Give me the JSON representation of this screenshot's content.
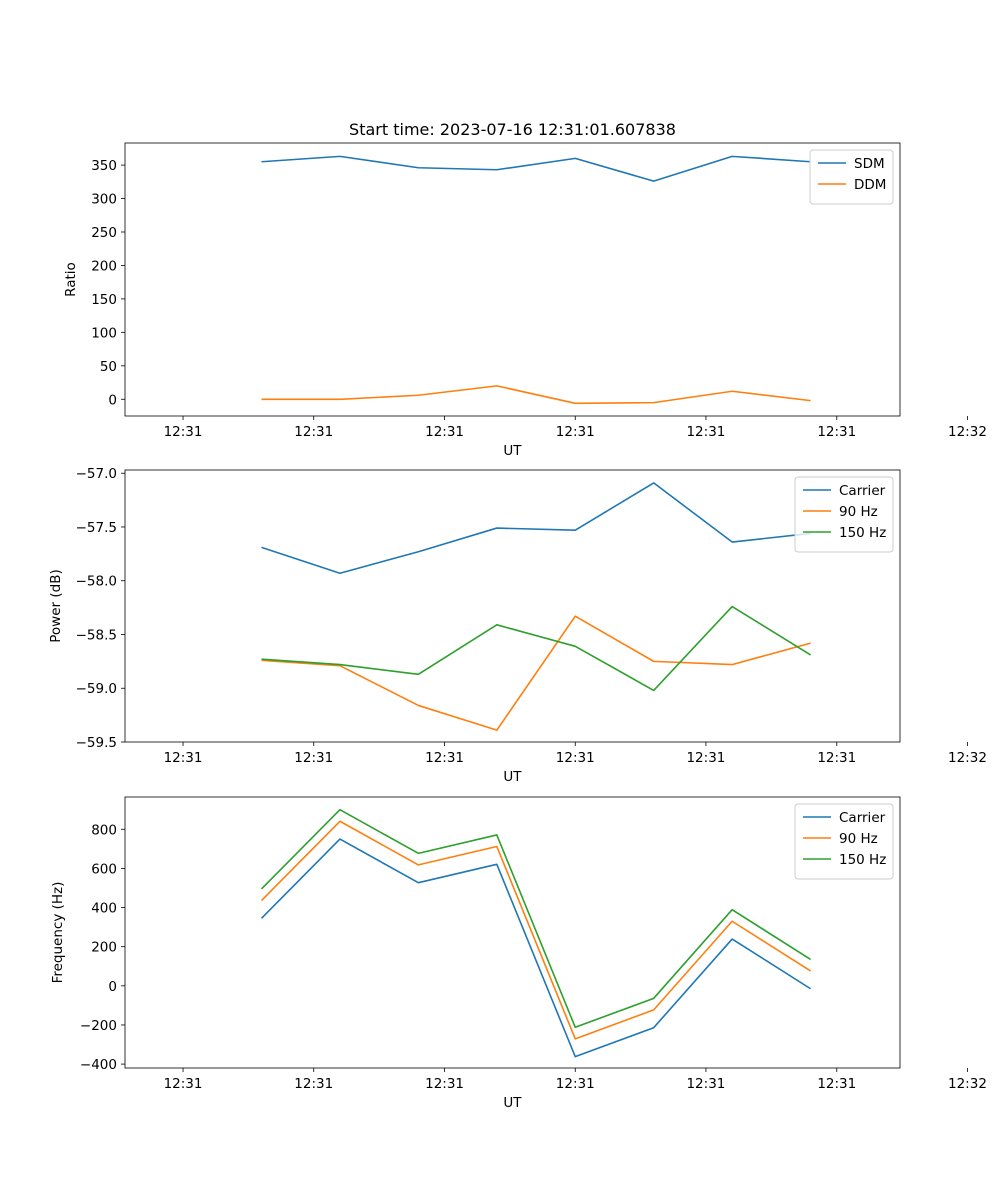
{
  "figure_title": "Start time: 2023-07-16 12:31:01.607838",
  "colors": {
    "series1": "#1f77b4",
    "series2": "#ff7f0e",
    "series3": "#2ca02c"
  },
  "chart_data": [
    {
      "type": "line",
      "title": "Start time: 2023-07-16 12:31:01.607838",
      "xlabel": "UT",
      "ylabel": "Ratio",
      "x": [
        0.5,
        1.0,
        1.5,
        2.0,
        2.5,
        3.0,
        3.5,
        4.0
      ],
      "xlim": [
        -0.37,
        4.57
      ],
      "xticks": [
        0,
        0.833,
        1.667,
        2.5,
        3.333,
        4.167,
        5.0
      ],
      "xtick_labels": [
        "12:31",
        "12:31",
        "12:31",
        "12:31",
        "12:31",
        "12:31",
        "12:32"
      ],
      "ylim": [
        -25,
        383
      ],
      "yticks": [
        0,
        50,
        100,
        150,
        200,
        250,
        300,
        350
      ],
      "ytick_labels": [
        "0",
        "50",
        "100",
        "150",
        "200",
        "250",
        "300",
        "350"
      ],
      "legend_position": "top-right",
      "series": [
        {
          "name": "SDM",
          "color": "#1f77b4",
          "values": [
            355,
            363,
            346,
            343,
            360,
            326,
            363,
            355
          ]
        },
        {
          "name": "DDM",
          "color": "#ff7f0e",
          "values": [
            0,
            0,
            6,
            20,
            -6,
            -5,
            12,
            -2
          ]
        }
      ]
    },
    {
      "type": "line",
      "title": "",
      "xlabel": "UT",
      "ylabel": "Power (dB)",
      "x": [
        0.5,
        1.0,
        1.5,
        2.0,
        2.5,
        3.0,
        3.5,
        4.0
      ],
      "xlim": [
        -0.37,
        4.57
      ],
      "xticks": [
        0,
        0.833,
        1.667,
        2.5,
        3.333,
        4.167,
        5.0
      ],
      "xtick_labels": [
        "12:31",
        "12:31",
        "12:31",
        "12:31",
        "12:31",
        "12:31",
        "12:32"
      ],
      "ylim": [
        -59.5,
        -56.97
      ],
      "yticks": [
        -59.5,
        -59.0,
        -58.5,
        -58.0,
        -57.5,
        -57.0
      ],
      "ytick_labels": [
        "−59.5",
        "−59.0",
        "−58.5",
        "−58.0",
        "−57.5",
        "−57.0"
      ],
      "legend_position": "top-right",
      "series": [
        {
          "name": "Carrier",
          "color": "#1f77b4",
          "values": [
            -57.69,
            -57.93,
            -57.73,
            -57.51,
            -57.53,
            -57.09,
            -57.64,
            -57.56
          ]
        },
        {
          "name": "90 Hz",
          "color": "#ff7f0e",
          "values": [
            -58.74,
            -58.79,
            -59.16,
            -59.39,
            -58.33,
            -58.75,
            -58.78,
            -58.58
          ]
        },
        {
          "name": "150 Hz",
          "color": "#2ca02c",
          "values": [
            -58.73,
            -58.78,
            -58.87,
            -58.41,
            -58.61,
            -59.02,
            -58.24,
            -58.69
          ]
        }
      ]
    },
    {
      "type": "line",
      "title": "",
      "xlabel": "UT",
      "ylabel": "Frequency (Hz)",
      "x": [
        0.5,
        1.0,
        1.5,
        2.0,
        2.5,
        3.0,
        3.5,
        4.0
      ],
      "xlim": [
        -0.37,
        4.57
      ],
      "xticks": [
        0,
        0.833,
        1.667,
        2.5,
        3.333,
        4.167,
        5.0
      ],
      "xtick_labels": [
        "12:31",
        "12:31",
        "12:31",
        "12:31",
        "12:31",
        "12:31",
        "12:32"
      ],
      "ylim": [
        -420,
        965
      ],
      "yticks": [
        -400,
        -200,
        0,
        200,
        400,
        600,
        800
      ],
      "ytick_labels": [
        "−400",
        "−200",
        "0",
        "200",
        "400",
        "600",
        "800"
      ],
      "legend_position": "top-right",
      "series": [
        {
          "name": "Carrier",
          "color": "#1f77b4",
          "values": [
            345,
            750,
            527,
            621,
            -362,
            -214,
            239,
            -15
          ]
        },
        {
          "name": "90 Hz",
          "color": "#ff7f0e",
          "values": [
            436,
            841,
            618,
            712,
            -271,
            -123,
            330,
            76
          ]
        },
        {
          "name": "150 Hz",
          "color": "#2ca02c",
          "values": [
            495,
            900,
            677,
            771,
            -212,
            -64,
            389,
            135
          ]
        }
      ]
    }
  ]
}
